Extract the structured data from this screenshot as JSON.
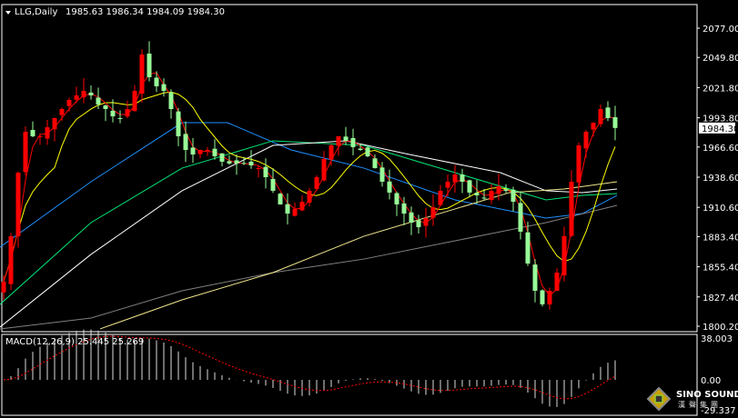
{
  "header": {
    "symbol_label": "LLG,Daily",
    "ohlc": "1985.63 1986.34 1984.09 1984.30"
  },
  "macd_panel": {
    "label": "MACD(12,26,9) 25.445 25.269",
    "axis_top": "38.003",
    "axis_zero": "0.00",
    "axis_bottom": "-29.337"
  },
  "logo": {
    "text_en": "SINO SOUND",
    "text_cn": "漢聲集團"
  },
  "colors": {
    "bull": "#ff0000",
    "bear": "#98fb98",
    "fast_ma": "#ff0000",
    "mid_ma": "#ffff00",
    "blue_ma": "#1e90ff",
    "green_ma": "#00e676",
    "white_ma": "#ffffff",
    "gray_ma": "#808080",
    "khaki_ma": "#f0e68c",
    "axis": "#ffffff"
  },
  "chart_data": {
    "type": "candlestick",
    "yticks": [
      "2077.00",
      "2049.80",
      "2021.80",
      "1993.80",
      "1966.60",
      "1938.60",
      "1910.60",
      "1883.40",
      "1855.40",
      "1827.40",
      "1800.20"
    ],
    "ylim": [
      1800.2,
      2077.0
    ],
    "current_price": "1984.30",
    "close": [
      1841.6,
      1883.8,
      1942.8,
      1980.8,
      1976.6,
      1976.6,
      1985,
      1993.5,
      2001.9,
      2010.3,
      2014.6,
      2018.8,
      2014.6,
      2006.1,
      2001.9,
      1995.1,
      1993.5,
      2001.9,
      2018.8,
      2052.5,
      2031.4,
      2023,
      2018.8,
      2001.9,
      1976.6,
      1963.9,
      1959.7,
      1963.9,
      1963.9,
      1958,
      1953,
      1951.3,
      1951.3,
      1951.3,
      1949.6,
      1947,
      1938.6,
      1926,
      1913.3,
      1904.8,
      1909.1,
      1915.8,
      1926,
      1938.6,
      1955.5,
      1968.1,
      1976.6,
      1972.4,
      1966.5,
      1963.9,
      1958,
      1947,
      1934.4,
      1924.3,
      1913.3,
      1904.8,
      1896.4,
      1892.2,
      1900.6,
      1910.8,
      1926,
      1934.4,
      1941.1,
      1934.4,
      1924.3,
      1921.7,
      1919.2,
      1926,
      1930.2,
      1926,
      1915.8,
      1888,
      1858.4,
      1833.1,
      1820.5,
      1833.1,
      1850,
      1883.8,
      1934.4,
      1968.1,
      1980.8,
      1989.2,
      2001.9,
      1993.5,
      1984.3
    ],
    "moving_averages": [
      {
        "color": "blue_ma",
        "points": [
          [
            -0.5,
            1873.6
          ],
          [
            12,
            1934.4
          ],
          [
            24.5,
            1989.2
          ],
          [
            30.75,
            1989.2
          ],
          [
            39.5,
            1963.9
          ],
          [
            49.5,
            1947
          ],
          [
            62,
            1917.5
          ],
          [
            74.5,
            1900.6
          ],
          [
            79.5,
            1904.8
          ],
          [
            84.25,
            1921.7
          ]
        ]
      },
      {
        "color": "green_ma",
        "points": [
          [
            -0.5,
            1820.5
          ],
          [
            12,
            1896.4
          ],
          [
            24.5,
            1947
          ],
          [
            37,
            1972.4
          ],
          [
            49.5,
            1968.1
          ],
          [
            62,
            1942.8
          ],
          [
            74.5,
            1917.5
          ],
          [
            79.5,
            1921.7
          ],
          [
            84.25,
            1923.4
          ]
        ]
      },
      {
        "color": "white_ma",
        "points": [
          [
            -0.5,
            1799.4
          ],
          [
            12,
            1866.9
          ],
          [
            24.5,
            1926
          ],
          [
            37,
            1968.1
          ],
          [
            47,
            1972.4
          ],
          [
            55.75,
            1959.7
          ],
          [
            68.25,
            1942.8
          ],
          [
            74.5,
            1926
          ],
          [
            79.5,
            1924.3
          ],
          [
            84.25,
            1927.6
          ]
        ]
      },
      {
        "color": "gray_ma",
        "points": [
          [
            -0.5,
            1797.7
          ],
          [
            12,
            1807.8
          ],
          [
            24.5,
            1833.1
          ],
          [
            37,
            1850
          ],
          [
            49.5,
            1862.6
          ],
          [
            62,
            1879.5
          ],
          [
            74.5,
            1896.4
          ],
          [
            84.25,
            1912.4
          ]
        ]
      },
      {
        "color": "khaki_ma",
        "points": [
          [
            13.25,
            1797.7
          ],
          [
            24.5,
            1824.7
          ],
          [
            37,
            1850
          ],
          [
            49.5,
            1883.8
          ],
          [
            62,
            1909.1
          ],
          [
            69.5,
            1924.3
          ],
          [
            77,
            1927.6
          ],
          [
            84.25,
            1934.4
          ]
        ]
      }
    ],
    "macd": {
      "fast": 12,
      "slow": 26,
      "signal": 9,
      "ylim": [
        -29.337,
        38.003
      ]
    }
  }
}
